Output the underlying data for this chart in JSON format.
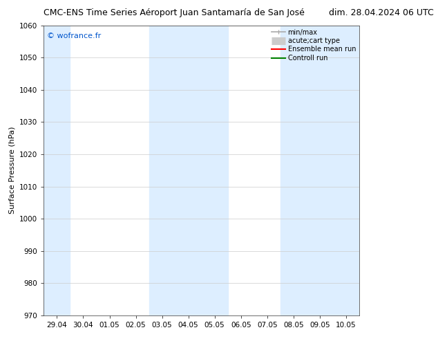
{
  "title_left": "CMC-ENS Time Series Aéroport Juan Santamaría de San José",
  "title_right": "dim. 28.04.2024 06 UTC",
  "ylabel": "Surface Pressure (hPa)",
  "ylim": [
    970,
    1060
  ],
  "yticks": [
    970,
    980,
    990,
    1000,
    1010,
    1020,
    1030,
    1040,
    1050,
    1060
  ],
  "xtick_labels": [
    "29.04",
    "30.04",
    "01.05",
    "02.05",
    "03.05",
    "04.05",
    "05.05",
    "06.05",
    "07.05",
    "08.05",
    "09.05",
    "10.05"
  ],
  "watermark": "© wofrance.fr",
  "watermark_color": "#0055cc",
  "bg_color": "#ffffff",
  "plot_bg_color": "#ffffff",
  "shaded_color": "#ddeeff",
  "legend_items": [
    {
      "label": "min/max",
      "color": "#aaaaaa",
      "lw": 1.2,
      "style": "line_with_caps"
    },
    {
      "label": "acute;cart type",
      "color": "#cccccc",
      "lw": 8,
      "style": "thick"
    },
    {
      "label": "Ensemble mean run",
      "color": "#ff0000",
      "lw": 1.5,
      "style": "line"
    },
    {
      "label": "Controll run",
      "color": "#008000",
      "lw": 1.5,
      "style": "line"
    }
  ],
  "grid_color": "#cccccc",
  "title_fontsize": 9,
  "ylabel_fontsize": 8,
  "tick_fontsize": 7.5,
  "legend_fontsize": 7,
  "watermark_fontsize": 8
}
